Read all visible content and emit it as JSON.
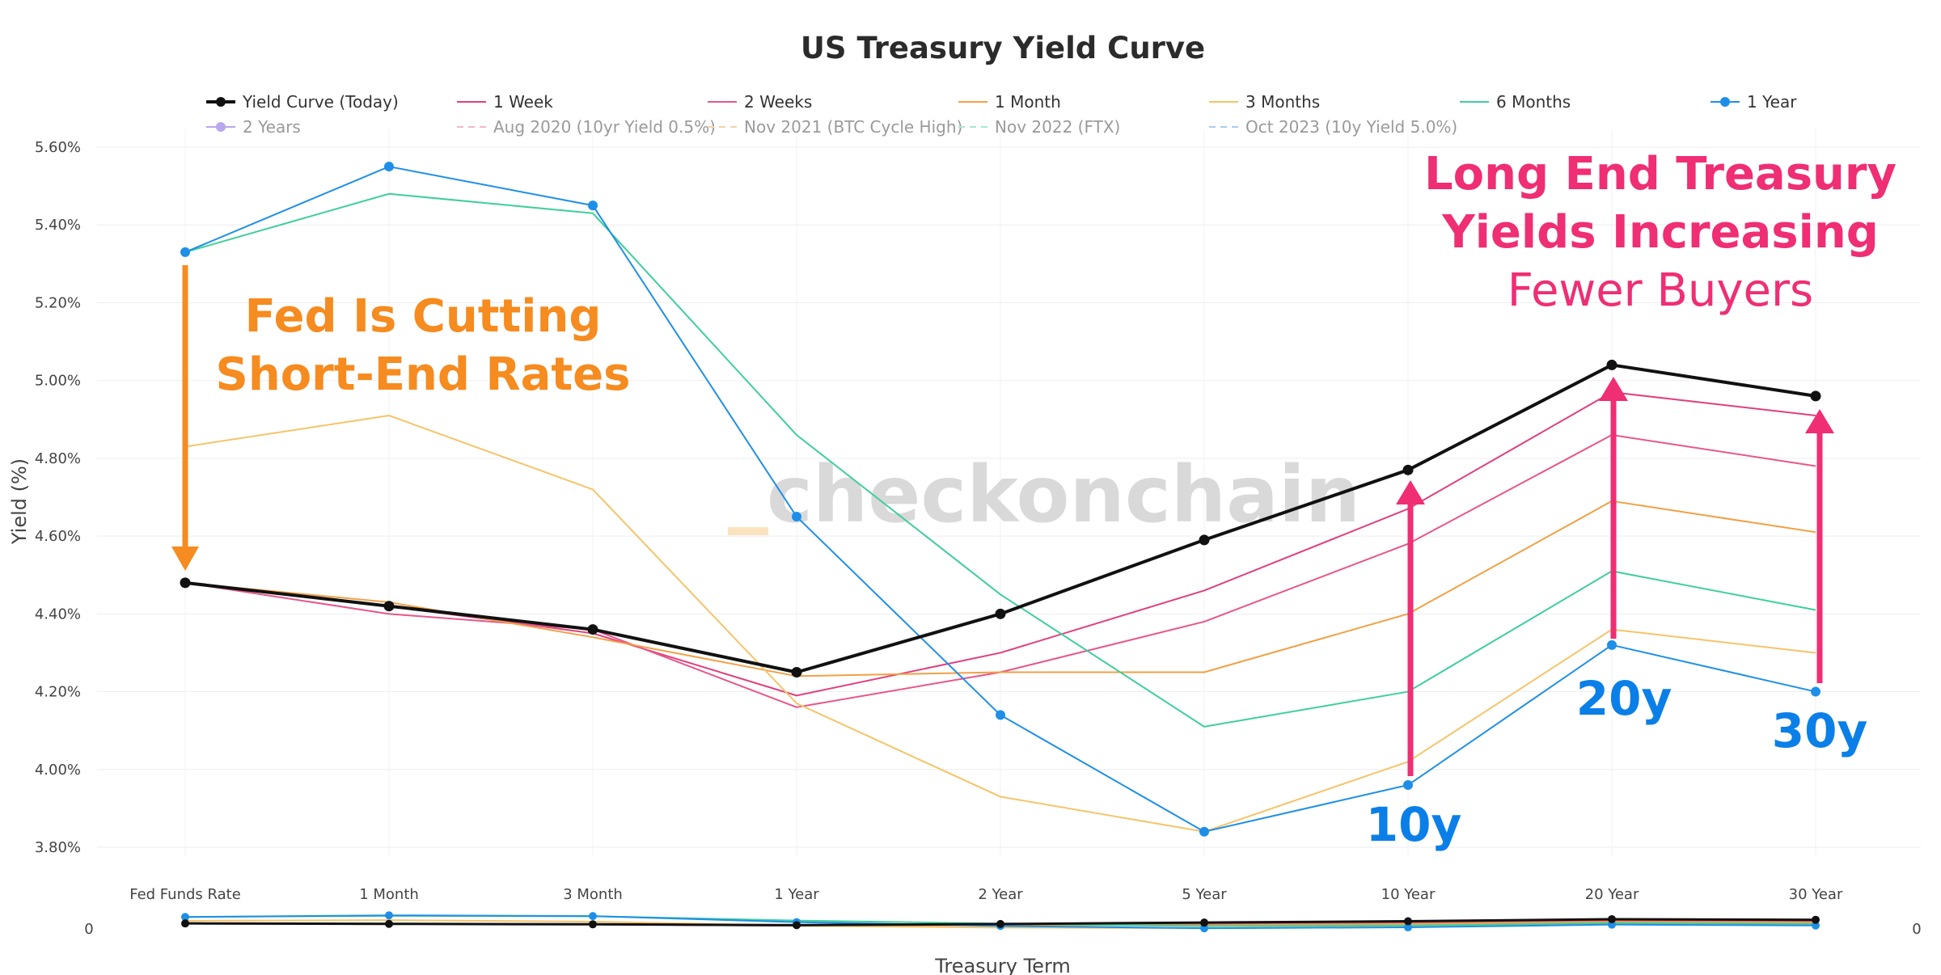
{
  "chart_data": {
    "type": "line",
    "title": "US Treasury Yield Curve",
    "xlabel": "Treasury Term",
    "ylabel": "Yield (%)",
    "categories": [
      "Fed Funds Rate",
      "1 Month",
      "3 Month",
      "1 Year",
      "2 Year",
      "5 Year",
      "10 Year",
      "20 Year",
      "30 Year"
    ],
    "ylim": [
      3.72,
      5.64
    ],
    "yticks": [
      3.8,
      4.0,
      4.2,
      4.4,
      4.6,
      4.8,
      5.0,
      5.2,
      5.4,
      5.6
    ],
    "ytick_labels": [
      "3.80%",
      "4.00%",
      "4.20%",
      "4.40%",
      "4.60%",
      "4.80%",
      "5.00%",
      "5.20%",
      "5.40%",
      "5.60%"
    ],
    "grid": true,
    "legend_position": "top",
    "series": [
      {
        "name": "Yield Curve (Today)",
        "color": "#111111",
        "markers": true,
        "width": 4,
        "values": [
          4.48,
          4.42,
          4.36,
          4.25,
          4.4,
          4.59,
          4.77,
          5.04,
          4.96
        ]
      },
      {
        "name": "1 Week",
        "color": "#e0407e",
        "markers": false,
        "width": 2,
        "values": [
          4.48,
          4.42,
          4.35,
          4.19,
          4.3,
          4.46,
          4.67,
          4.97,
          4.91
        ]
      },
      {
        "name": "2 Weeks",
        "color": "#e8568a",
        "markers": false,
        "width": 2,
        "values": [
          4.48,
          4.4,
          4.36,
          4.16,
          4.25,
          4.38,
          4.58,
          4.86,
          4.78
        ]
      },
      {
        "name": "1 Month",
        "color": "#f2a045",
        "markers": false,
        "width": 2,
        "values": [
          4.48,
          4.43,
          4.34,
          4.24,
          4.25,
          4.25,
          4.4,
          4.69,
          4.61
        ]
      },
      {
        "name": "3 Months",
        "color": "#f5c469",
        "markers": false,
        "width": 2,
        "values": [
          4.83,
          4.91,
          4.72,
          4.17,
          3.93,
          3.84,
          4.02,
          4.36,
          4.3
        ]
      },
      {
        "name": "6 Months",
        "color": "#3ecf9a",
        "markers": false,
        "width": 2,
        "values": [
          5.33,
          5.48,
          5.43,
          4.86,
          4.45,
          4.11,
          4.2,
          4.51,
          4.41
        ]
      },
      {
        "name": "1 Year",
        "color": "#1e8fe8",
        "markers": true,
        "width": 2,
        "values": [
          5.33,
          5.55,
          5.45,
          4.65,
          4.14,
          3.84,
          3.96,
          4.32,
          4.2
        ]
      }
    ],
    "legend_faded": [
      {
        "name": "2 Years",
        "color": "#b9a7f0",
        "style": "marker"
      },
      {
        "name": "Aug 2020 (10yr Yield 0.5%)",
        "color": "#f2b8c8",
        "style": "dash"
      },
      {
        "name": "Nov 2021 (BTC Cycle High)",
        "color": "#f5d3a8",
        "style": "dash"
      },
      {
        "name": "Nov 2022 (FTX)",
        "color": "#a8e8d0",
        "style": "dash"
      },
      {
        "name": "Oct 2023 (10y Yield 5.0%)",
        "color": "#a8ccf0",
        "style": "dash"
      }
    ],
    "mini_axis_label": "0"
  },
  "annotations": {
    "fed_line1": "Fed Is Cutting",
    "fed_line2": "Short-End Rates",
    "long_line1": "Long End Treasury",
    "long_line2": "Yields Increasing",
    "long_line3": "Fewer Buyers",
    "label_10y": "10y",
    "label_20y": "20y",
    "label_30y": "30y",
    "watermark": "checkonchain",
    "colors": {
      "orange": "#f68b1f",
      "pink": "#ef2e74",
      "blue": "#0b7fe8"
    }
  }
}
